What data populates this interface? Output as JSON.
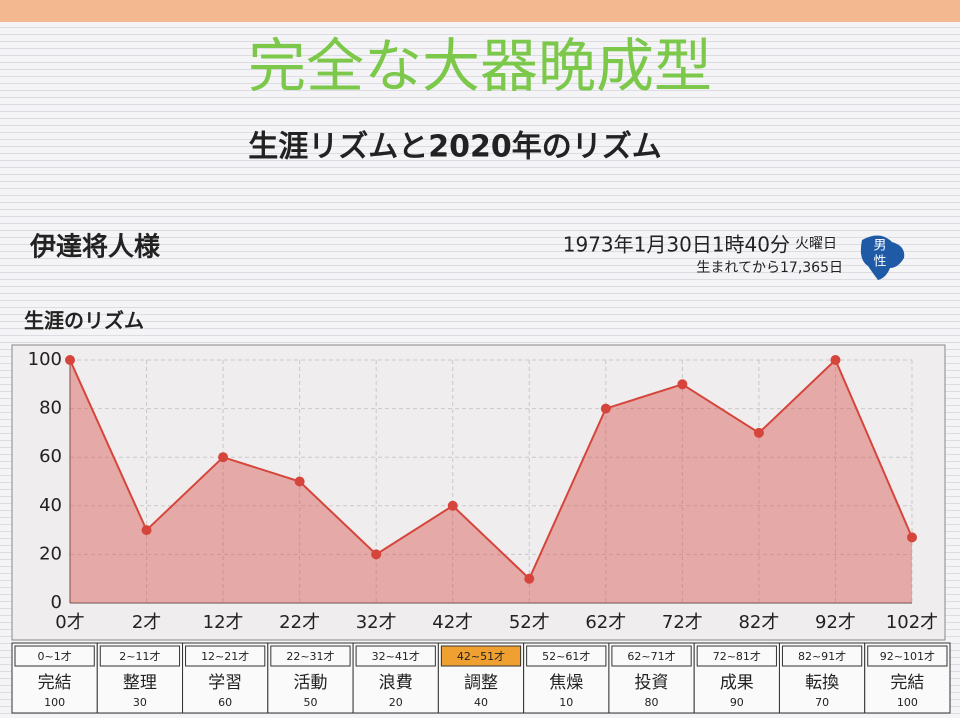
{
  "header": {
    "title": "完全な大器晩成型",
    "subtitle": "生涯リズムと2020年のリズム"
  },
  "person": {
    "name": "伊達将人様",
    "birth": "1973年1月30日1時40分",
    "weekday": "火曜日",
    "days": "生まれてから17,365日",
    "gender": [
      "男",
      "性"
    ]
  },
  "chart_data": {
    "type": "area",
    "title": "生涯のリズム",
    "categories": [
      "0才",
      "2才",
      "12才",
      "22才",
      "32才",
      "42才",
      "52才",
      "62才",
      "72才",
      "82才",
      "92才",
      "102才"
    ],
    "values": [
      100,
      30,
      60,
      50,
      20,
      40,
      10,
      80,
      90,
      70,
      100,
      27
    ],
    "color": "#d6453c",
    "ylim": [
      0,
      100
    ],
    "yticks": [
      0,
      20,
      40,
      60,
      80,
      100
    ],
    "grid": true
  },
  "table": {
    "columns": [
      {
        "range": "0~1才",
        "name": "完結",
        "value": "100"
      },
      {
        "range": "2~11才",
        "name": "整理",
        "value": "30"
      },
      {
        "range": "12~21才",
        "name": "学習",
        "value": "60"
      },
      {
        "range": "22~31才",
        "name": "活動",
        "value": "50"
      },
      {
        "range": "32~41才",
        "name": "浪費",
        "value": "20"
      },
      {
        "range": "42~51才",
        "name": "調整",
        "value": "40"
      },
      {
        "range": "52~61才",
        "name": "焦燥",
        "value": "10"
      },
      {
        "range": "62~71才",
        "name": "投資",
        "value": "80"
      },
      {
        "range": "72~81才",
        "name": "成果",
        "value": "90"
      },
      {
        "range": "82~91才",
        "name": "転換",
        "value": "70"
      },
      {
        "range": "92~101才",
        "name": "完結",
        "value": "100"
      }
    ],
    "highlight": 5
  }
}
